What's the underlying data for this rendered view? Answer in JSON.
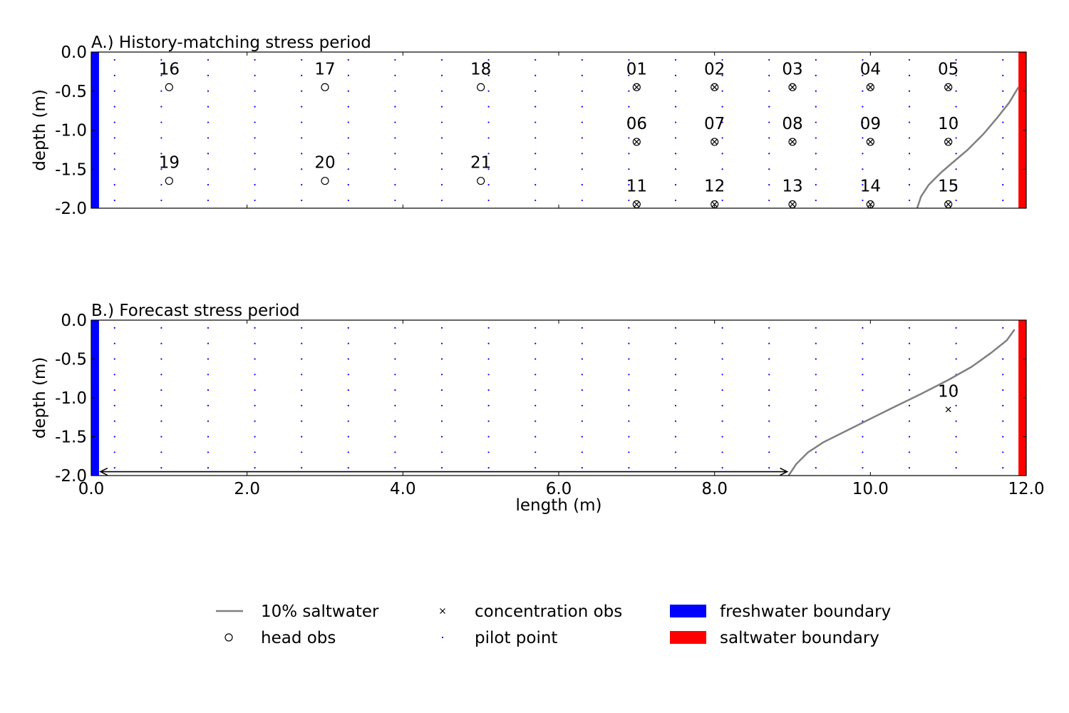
{
  "chart_data": [
    {
      "type": "scatter",
      "title": "A.) History-matching stress period",
      "xlabel": "",
      "ylabel": "depth (m)",
      "xlim": [
        0.0,
        12.0
      ],
      "ylim": [
        -2.0,
        0.0
      ],
      "x_ticks": [
        "0.0",
        "2.0",
        "4.0",
        "6.0",
        "8.0",
        "10.0",
        "12.0"
      ],
      "y_ticks": [
        "0.0",
        "-0.5",
        "-1.0",
        "-1.5",
        "-2.0"
      ],
      "x_tick_labels_visible": false,
      "head_obs": [
        {
          "label": "16",
          "x": 1.0,
          "y": -0.45
        },
        {
          "label": "17",
          "x": 3.0,
          "y": -0.45
        },
        {
          "label": "18",
          "x": 5.0,
          "y": -0.45
        },
        {
          "label": "19",
          "x": 1.0,
          "y": -1.65
        },
        {
          "label": "20",
          "x": 3.0,
          "y": -1.65
        },
        {
          "label": "21",
          "x": 5.0,
          "y": -1.65
        }
      ],
      "head_and_concentration_obs": [
        {
          "label": "01",
          "x": 7.0,
          "y": -0.45
        },
        {
          "label": "02",
          "x": 8.0,
          "y": -0.45
        },
        {
          "label": "03",
          "x": 9.0,
          "y": -0.45
        },
        {
          "label": "04",
          "x": 10.0,
          "y": -0.45
        },
        {
          "label": "05",
          "x": 11.0,
          "y": -0.45
        },
        {
          "label": "06",
          "x": 7.0,
          "y": -1.15
        },
        {
          "label": "07",
          "x": 8.0,
          "y": -1.15
        },
        {
          "label": "08",
          "x": 9.0,
          "y": -1.15
        },
        {
          "label": "09",
          "x": 10.0,
          "y": -1.15
        },
        {
          "label": "10",
          "x": 11.0,
          "y": -1.15
        },
        {
          "label": "11",
          "x": 7.0,
          "y": -1.95
        },
        {
          "label": "12",
          "x": 8.0,
          "y": -1.95
        },
        {
          "label": "13",
          "x": 9.0,
          "y": -1.95
        },
        {
          "label": "14",
          "x": 10.0,
          "y": -1.95
        },
        {
          "label": "15",
          "x": 11.0,
          "y": -1.95
        }
      ],
      "saltwater_10pct": {
        "x": [
          10.6,
          10.65,
          10.75,
          10.9,
          11.05,
          11.25,
          11.45,
          11.62,
          11.78,
          11.9
        ],
        "y": [
          -2.0,
          -1.85,
          -1.7,
          -1.55,
          -1.42,
          -1.25,
          -1.05,
          -0.85,
          -0.65,
          -0.45
        ]
      },
      "freshwater_boundary": {
        "x": [
          0.0,
          0.1
        ],
        "y": [
          -2.0,
          0.0
        ],
        "color": "#0000ff"
      },
      "saltwater_boundary": {
        "x": [
          11.9,
          12.0
        ],
        "y": [
          -2.0,
          0.0
        ],
        "color": "#ff0000"
      },
      "pilot_points": {
        "x_start": 0.3,
        "x_step": 0.6,
        "count_x": 20,
        "y_start": -0.1,
        "y_step": -0.2,
        "count_y": 10,
        "color": "#0000ff"
      },
      "grid": false
    },
    {
      "type": "scatter",
      "title": "B.) Forecast stress period",
      "xlabel": "length (m)",
      "ylabel": "depth (m)",
      "xlim": [
        0.0,
        12.0
      ],
      "ylim": [
        -2.0,
        0.0
      ],
      "x_ticks": [
        "0.0",
        "2.0",
        "4.0",
        "6.0",
        "8.0",
        "10.0",
        "12.0"
      ],
      "y_ticks": [
        "0.0",
        "-0.5",
        "-1.0",
        "-1.5",
        "-2.0"
      ],
      "x_tick_labels_visible": true,
      "concentration_obs": [
        {
          "label": "10",
          "x": 11.0,
          "y": -1.15
        }
      ],
      "saltwater_10pct": {
        "x": [
          8.95,
          9.05,
          9.2,
          9.4,
          9.7,
          10.0,
          10.3,
          10.65,
          11.0,
          11.3,
          11.55,
          11.75,
          11.85
        ],
        "y": [
          -2.0,
          -1.85,
          -1.7,
          -1.57,
          -1.42,
          -1.27,
          -1.12,
          -0.95,
          -0.77,
          -0.6,
          -0.42,
          -0.26,
          -0.12
        ]
      },
      "arrow": {
        "x_start": 0.1,
        "x_end": 8.95,
        "y": -1.95
      },
      "freshwater_boundary": {
        "x": [
          0.0,
          0.1
        ],
        "y": [
          -2.0,
          0.0
        ],
        "color": "#0000ff"
      },
      "saltwater_boundary": {
        "x": [
          11.9,
          12.0
        ],
        "y": [
          -2.0,
          0.0
        ],
        "color": "#ff0000"
      },
      "pilot_points": {
        "x_start": 0.3,
        "x_step": 0.6,
        "count_x": 20,
        "y_start": -0.1,
        "y_step": -0.2,
        "count_y": 10,
        "color": "#0000ff"
      },
      "grid": false
    }
  ],
  "legend": {
    "placement": "bottom-center",
    "items": [
      {
        "key": "line",
        "label": "10% saltwater",
        "color": "#808080"
      },
      {
        "key": "x",
        "label": "concentration obs",
        "color": "#000000"
      },
      {
        "key": "patch",
        "label": "freshwater boundary",
        "color": "#0000ff"
      },
      {
        "key": "circle",
        "label": "head obs",
        "color": "#000000"
      },
      {
        "key": "dot",
        "label": "pilot point",
        "color": "#0000ff"
      },
      {
        "key": "patch",
        "label": "saltwater boundary",
        "color": "#ff0000"
      }
    ]
  }
}
